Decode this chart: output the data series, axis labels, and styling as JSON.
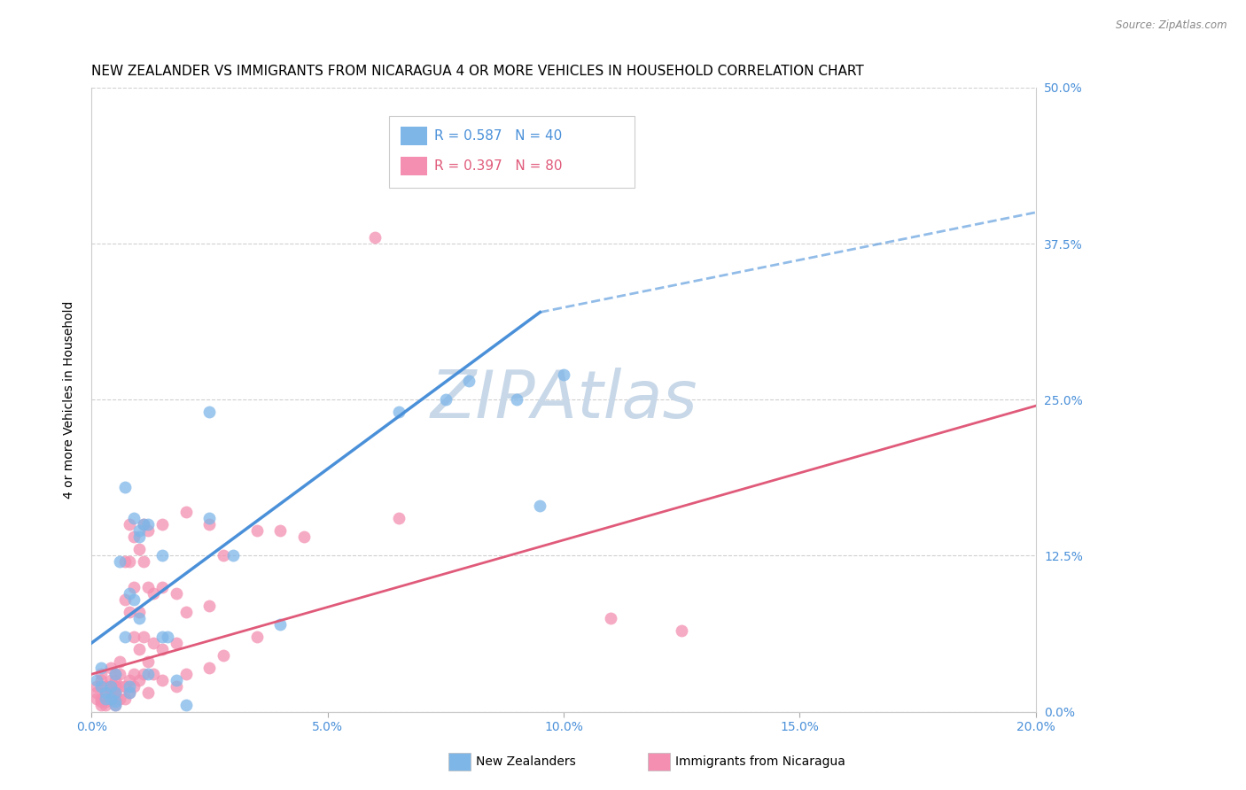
{
  "title": "NEW ZEALANDER VS IMMIGRANTS FROM NICARAGUA 4 OR MORE VEHICLES IN HOUSEHOLD CORRELATION CHART",
  "source": "Source: ZipAtlas.com",
  "xlabel_ticks": [
    "0.0%",
    "5.0%",
    "10.0%",
    "15.0%",
    "20.0%"
  ],
  "xlabel_tick_vals": [
    0.0,
    0.05,
    0.1,
    0.15,
    0.2
  ],
  "ylabel": "4 or more Vehicles in Household",
  "ylabel_ticks": [
    "0.0%",
    "12.5%",
    "25.0%",
    "37.5%",
    "50.0%"
  ],
  "ylabel_tick_vals": [
    0.0,
    0.125,
    0.25,
    0.375,
    0.5
  ],
  "xlim": [
    0.0,
    0.2
  ],
  "ylim": [
    0.0,
    0.5
  ],
  "legend_r_blue": "R = 0.587",
  "legend_n_blue": "N = 40",
  "legend_r_pink": "R = 0.397",
  "legend_n_pink": "N = 80",
  "legend_label_blue": "New Zealanders",
  "legend_label_pink": "Immigrants from Nicaragua",
  "blue_color": "#7EB6E8",
  "pink_color": "#F48FB1",
  "trendline_blue_color": "#4A90D9",
  "trendline_pink_color": "#E05A7A",
  "watermark_color": "#C8D8E8",
  "title_fontsize": 11,
  "axis_label_fontsize": 10,
  "tick_fontsize": 10,
  "right_tick_color": "#4A90D9",
  "blue_scatter": [
    [
      0.001,
      0.025
    ],
    [
      0.002,
      0.035
    ],
    [
      0.002,
      0.02
    ],
    [
      0.003,
      0.01
    ],
    [
      0.003,
      0.015
    ],
    [
      0.004,
      0.02
    ],
    [
      0.004,
      0.01
    ],
    [
      0.005,
      0.03
    ],
    [
      0.005,
      0.015
    ],
    [
      0.005,
      0.005
    ],
    [
      0.005,
      0.008
    ],
    [
      0.006,
      0.12
    ],
    [
      0.007,
      0.06
    ],
    [
      0.007,
      0.18
    ],
    [
      0.008,
      0.02
    ],
    [
      0.008,
      0.015
    ],
    [
      0.008,
      0.095
    ],
    [
      0.009,
      0.155
    ],
    [
      0.009,
      0.09
    ],
    [
      0.01,
      0.075
    ],
    [
      0.01,
      0.14
    ],
    [
      0.01,
      0.145
    ],
    [
      0.011,
      0.15
    ],
    [
      0.012,
      0.15
    ],
    [
      0.012,
      0.03
    ],
    [
      0.015,
      0.06
    ],
    [
      0.015,
      0.125
    ],
    [
      0.016,
      0.06
    ],
    [
      0.018,
      0.025
    ],
    [
      0.02,
      0.005
    ],
    [
      0.025,
      0.24
    ],
    [
      0.025,
      0.155
    ],
    [
      0.03,
      0.125
    ],
    [
      0.04,
      0.07
    ],
    [
      0.065,
      0.24
    ],
    [
      0.075,
      0.25
    ],
    [
      0.08,
      0.265
    ],
    [
      0.09,
      0.25
    ],
    [
      0.095,
      0.165
    ],
    [
      0.1,
      0.27
    ]
  ],
  "pink_scatter": [
    [
      0.001,
      0.02
    ],
    [
      0.001,
      0.015
    ],
    [
      0.001,
      0.01
    ],
    [
      0.002,
      0.025
    ],
    [
      0.002,
      0.03
    ],
    [
      0.002,
      0.01
    ],
    [
      0.002,
      0.008
    ],
    [
      0.002,
      0.005
    ],
    [
      0.003,
      0.02
    ],
    [
      0.003,
      0.015
    ],
    [
      0.003,
      0.01
    ],
    [
      0.003,
      0.008
    ],
    [
      0.003,
      0.005
    ],
    [
      0.004,
      0.035
    ],
    [
      0.004,
      0.025
    ],
    [
      0.004,
      0.02
    ],
    [
      0.004,
      0.015
    ],
    [
      0.004,
      0.01
    ],
    [
      0.005,
      0.03
    ],
    [
      0.005,
      0.025
    ],
    [
      0.005,
      0.02
    ],
    [
      0.005,
      0.015
    ],
    [
      0.005,
      0.01
    ],
    [
      0.005,
      0.005
    ],
    [
      0.006,
      0.04
    ],
    [
      0.006,
      0.03
    ],
    [
      0.006,
      0.02
    ],
    [
      0.006,
      0.01
    ],
    [
      0.007,
      0.12
    ],
    [
      0.007,
      0.09
    ],
    [
      0.007,
      0.02
    ],
    [
      0.007,
      0.01
    ],
    [
      0.008,
      0.15
    ],
    [
      0.008,
      0.12
    ],
    [
      0.008,
      0.08
    ],
    [
      0.008,
      0.025
    ],
    [
      0.008,
      0.015
    ],
    [
      0.009,
      0.14
    ],
    [
      0.009,
      0.1
    ],
    [
      0.009,
      0.06
    ],
    [
      0.009,
      0.03
    ],
    [
      0.009,
      0.02
    ],
    [
      0.01,
      0.13
    ],
    [
      0.01,
      0.08
    ],
    [
      0.01,
      0.05
    ],
    [
      0.01,
      0.025
    ],
    [
      0.011,
      0.15
    ],
    [
      0.011,
      0.12
    ],
    [
      0.011,
      0.06
    ],
    [
      0.011,
      0.03
    ],
    [
      0.012,
      0.145
    ],
    [
      0.012,
      0.1
    ],
    [
      0.012,
      0.04
    ],
    [
      0.012,
      0.015
    ],
    [
      0.013,
      0.095
    ],
    [
      0.013,
      0.055
    ],
    [
      0.013,
      0.03
    ],
    [
      0.015,
      0.15
    ],
    [
      0.015,
      0.1
    ],
    [
      0.015,
      0.05
    ],
    [
      0.015,
      0.025
    ],
    [
      0.018,
      0.095
    ],
    [
      0.018,
      0.055
    ],
    [
      0.018,
      0.02
    ],
    [
      0.02,
      0.16
    ],
    [
      0.02,
      0.08
    ],
    [
      0.02,
      0.03
    ],
    [
      0.025,
      0.15
    ],
    [
      0.025,
      0.085
    ],
    [
      0.025,
      0.035
    ],
    [
      0.028,
      0.125
    ],
    [
      0.028,
      0.045
    ],
    [
      0.035,
      0.145
    ],
    [
      0.035,
      0.06
    ],
    [
      0.04,
      0.145
    ],
    [
      0.045,
      0.14
    ],
    [
      0.06,
      0.38
    ],
    [
      0.065,
      0.155
    ],
    [
      0.11,
      0.075
    ],
    [
      0.125,
      0.065
    ]
  ],
  "blue_trendline_solid": [
    [
      0.0,
      0.055
    ],
    [
      0.095,
      0.32
    ]
  ],
  "blue_trendline_dashed": [
    [
      0.095,
      0.32
    ],
    [
      0.2,
      0.4
    ]
  ],
  "pink_trendline": [
    [
      0.0,
      0.03
    ],
    [
      0.2,
      0.245
    ]
  ]
}
